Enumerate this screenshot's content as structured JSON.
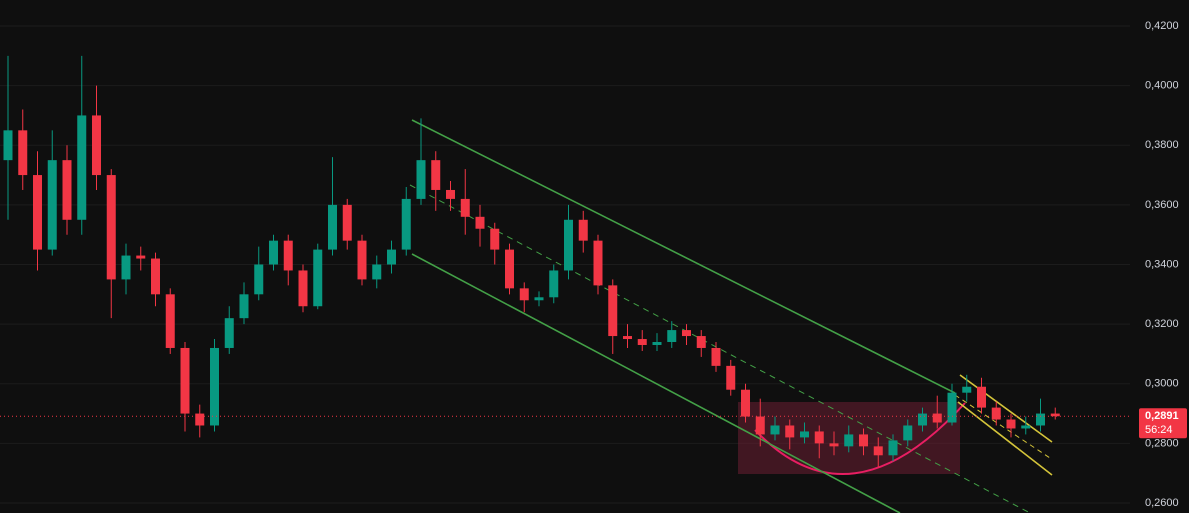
{
  "chart_data": {
    "type": "candlestick",
    "categories": [
      null,
      null,
      null,
      null,
      null,
      null,
      null,
      null,
      null,
      null,
      null,
      null,
      null,
      null,
      null,
      null,
      null,
      null,
      null,
      null,
      null,
      null,
      null,
      null,
      null,
      null,
      null,
      null,
      null,
      null,
      null,
      null,
      null,
      null,
      null,
      null,
      null,
      null,
      null,
      null,
      null,
      null,
      null,
      null,
      null,
      null,
      null,
      null,
      null,
      null,
      null,
      null,
      null,
      null,
      null,
      null,
      null,
      null,
      null,
      null,
      null,
      null,
      null,
      null,
      null,
      null,
      null,
      null,
      null,
      null,
      null,
      null
    ],
    "open": [
      0.375,
      0.385,
      0.37,
      0.345,
      0.375,
      0.355,
      0.39,
      0.37,
      0.335,
      0.343,
      0.342,
      0.33,
      0.312,
      0.29,
      0.286,
      0.312,
      0.322,
      0.33,
      0.34,
      0.348,
      0.338,
      0.326,
      0.345,
      0.36,
      0.348,
      0.335,
      0.34,
      0.345,
      0.362,
      0.375,
      0.365,
      0.362,
      0.356,
      0.352,
      0.345,
      0.332,
      0.328,
      0.329,
      0.338,
      0.355,
      0.348,
      0.333,
      0.316,
      0.315,
      0.313,
      0.314,
      0.318,
      0.316,
      0.312,
      0.306,
      0.298,
      0.289,
      0.283,
      0.286,
      0.282,
      0.284,
      0.28,
      0.279,
      0.283,
      0.279,
      0.276,
      0.281,
      0.286,
      0.29,
      0.287,
      0.297,
      0.299,
      0.292,
      0.288,
      0.285,
      0.286,
      0.29
    ],
    "high": [
      0.41,
      0.392,
      0.378,
      0.385,
      0.38,
      0.41,
      0.4,
      0.372,
      0.347,
      0.346,
      0.344,
      0.332,
      0.314,
      0.293,
      0.315,
      0.326,
      0.334,
      0.346,
      0.35,
      0.35,
      0.34,
      0.347,
      0.376,
      0.362,
      0.35,
      0.343,
      0.348,
      0.366,
      0.389,
      0.378,
      0.368,
      0.372,
      0.36,
      0.354,
      0.347,
      0.334,
      0.331,
      0.34,
      0.36,
      0.358,
      0.35,
      0.335,
      0.32,
      0.318,
      0.317,
      0.321,
      0.32,
      0.318,
      0.314,
      0.308,
      0.3,
      0.295,
      0.289,
      0.288,
      0.287,
      0.286,
      0.284,
      0.286,
      0.285,
      0.282,
      0.283,
      0.288,
      0.292,
      0.296,
      0.3,
      0.303,
      0.302,
      0.294,
      0.29,
      0.289,
      0.295,
      0.292
    ],
    "low": [
      0.355,
      0.365,
      0.338,
      0.343,
      0.35,
      0.35,
      0.365,
      0.322,
      0.33,
      0.338,
      0.326,
      0.31,
      0.284,
      0.282,
      0.284,
      0.31,
      0.32,
      0.328,
      0.338,
      0.333,
      0.324,
      0.325,
      0.343,
      0.345,
      0.333,
      0.332,
      0.337,
      0.343,
      0.36,
      0.358,
      0.358,
      0.35,
      0.346,
      0.34,
      0.33,
      0.324,
      0.326,
      0.327,
      0.335,
      0.344,
      0.33,
      0.31,
      0.312,
      0.311,
      0.311,
      0.312,
      0.313,
      0.309,
      0.304,
      0.296,
      0.287,
      0.279,
      0.281,
      0.278,
      0.28,
      0.275,
      0.276,
      0.277,
      0.276,
      0.272,
      0.274,
      0.279,
      0.284,
      0.285,
      0.286,
      0.294,
      0.29,
      0.286,
      0.282,
      0.283,
      0.284,
      0.288
    ],
    "close": [
      0.385,
      0.37,
      0.345,
      0.375,
      0.355,
      0.39,
      0.37,
      0.335,
      0.343,
      0.342,
      0.33,
      0.312,
      0.29,
      0.286,
      0.312,
      0.322,
      0.33,
      0.34,
      0.348,
      0.338,
      0.326,
      0.345,
      0.36,
      0.348,
      0.335,
      0.34,
      0.345,
      0.362,
      0.375,
      0.365,
      0.362,
      0.356,
      0.352,
      0.345,
      0.332,
      0.328,
      0.329,
      0.338,
      0.355,
      0.348,
      0.333,
      0.316,
      0.315,
      0.313,
      0.314,
      0.318,
      0.316,
      0.312,
      0.306,
      0.298,
      0.289,
      0.283,
      0.286,
      0.282,
      0.284,
      0.28,
      0.279,
      0.283,
      0.279,
      0.276,
      0.281,
      0.286,
      0.29,
      0.287,
      0.297,
      0.299,
      0.292,
      0.288,
      0.285,
      0.286,
      0.29,
      0.2891
    ],
    "up_color": "#089981",
    "down_color": "#f23645",
    "ylim": [
      0.26,
      0.42
    ],
    "yticks": [
      {
        "value": 0.26,
        "label": "0,2600"
      },
      {
        "value": 0.28,
        "label": "0,2800"
      },
      {
        "value": 0.3,
        "label": "0,3000"
      },
      {
        "value": 0.32,
        "label": "0,3200"
      },
      {
        "value": 0.34,
        "label": "0,3400"
      },
      {
        "value": 0.36,
        "label": "0,3600"
      },
      {
        "value": 0.38,
        "label": "0,3800"
      },
      {
        "value": 0.4,
        "label": "0,4000"
      },
      {
        "value": 0.42,
        "label": "0,4200"
      }
    ],
    "grid": true,
    "last_price": {
      "value": 0.2891,
      "label": "0,2891"
    },
    "countdown": "56:24"
  }
}
